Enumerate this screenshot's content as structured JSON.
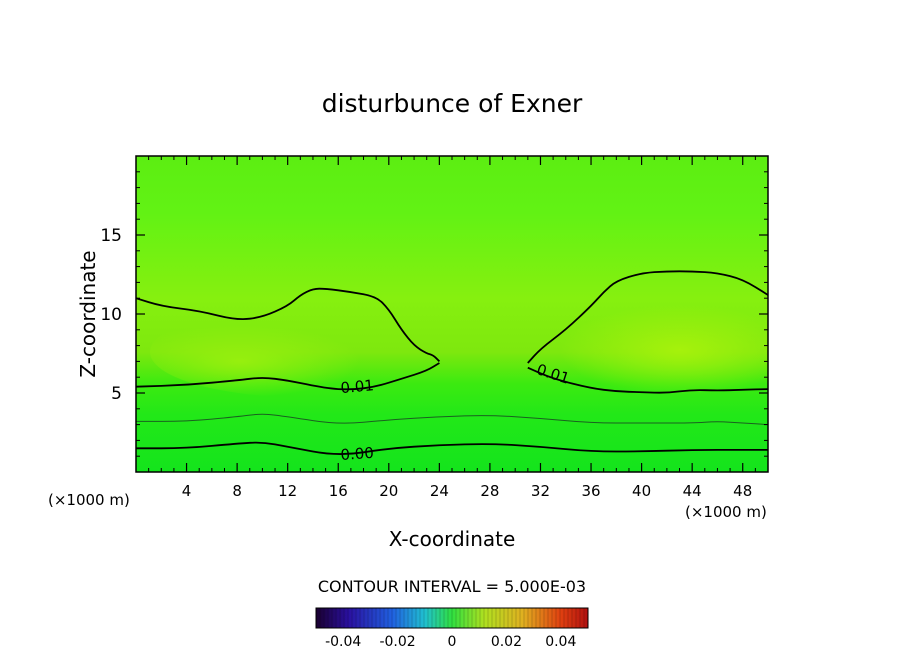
{
  "chart_data": {
    "type": "heatmap",
    "title": "disturbunce of Exner",
    "xlabel": "X-coordinate",
    "ylabel": "Z-coordinate",
    "x_unit": "(×1000 m)",
    "z_unit": "(×1000 m)",
    "xlim": [
      0,
      50
    ],
    "ylim": [
      0,
      20
    ],
    "x_ticks": [
      4,
      8,
      12,
      16,
      20,
      24,
      28,
      32,
      36,
      40,
      44,
      48
    ],
    "y_ticks": [
      5,
      10,
      15
    ],
    "contour_interval_text": "CONTOUR INTERVAL = 5.000E-03",
    "contour_labels": [
      "0.01",
      "0.01",
      "0.00"
    ],
    "colorbar": {
      "range": [
        -0.05,
        0.05
      ],
      "ticks": [
        "-0.04",
        "-0.02",
        "0",
        "0.02",
        "0.04"
      ]
    },
    "contours": [
      {
        "level": 0.01,
        "x": [
          0,
          4,
          8,
          10,
          12,
          15,
          17,
          19,
          21,
          23,
          24
        ],
        "z": [
          5.4,
          5.5,
          5.8,
          6.0,
          5.8,
          5.3,
          5.2,
          5.4,
          5.9,
          6.4,
          6.9
        ]
      },
      {
        "level": 0.01,
        "x": [
          0,
          2,
          5,
          8,
          10,
          12,
          13,
          14,
          15,
          17,
          19,
          20,
          21,
          22,
          23,
          23.5,
          24
        ],
        "z": [
          11.0,
          10.5,
          10.2,
          9.6,
          9.8,
          10.5,
          11.2,
          11.6,
          11.6,
          11.4,
          11.1,
          10.3,
          9.0,
          8.0,
          7.5,
          7.4,
          7.0
        ]
      },
      {
        "level": 0.01,
        "x": [
          31,
          32,
          34,
          36,
          37,
          38,
          40,
          42,
          44,
          46,
          48,
          50
        ],
        "z": [
          6.9,
          7.8,
          9.0,
          10.5,
          11.4,
          12.1,
          12.6,
          12.7,
          12.7,
          12.6,
          12.2,
          11.2
        ]
      },
      {
        "level": 0.01,
        "x": [
          31,
          33,
          36,
          38,
          40,
          42,
          44,
          46,
          48,
          50
        ],
        "z": [
          6.6,
          5.9,
          5.3,
          5.1,
          5.05,
          5.0,
          5.2,
          5.15,
          5.2,
          5.25
        ]
      },
      {
        "level": 0.005,
        "x": [
          0,
          4,
          8,
          10,
          12,
          16,
          20,
          24,
          28,
          32,
          36,
          40,
          44,
          46,
          48,
          50
        ],
        "z": [
          3.2,
          3.2,
          3.5,
          3.7,
          3.5,
          3.0,
          3.3,
          3.5,
          3.6,
          3.4,
          3.1,
          3.1,
          3.1,
          3.2,
          3.1,
          3.0
        ]
      },
      {
        "level": 0.0,
        "x": [
          0,
          4,
          8,
          10,
          12,
          16,
          20,
          24,
          28,
          32,
          36,
          40,
          44,
          48,
          50
        ],
        "z": [
          1.5,
          1.5,
          1.8,
          1.9,
          1.6,
          1.0,
          1.5,
          1.7,
          1.8,
          1.6,
          1.3,
          1.3,
          1.4,
          1.4,
          1.4
        ]
      }
    ],
    "grid": false
  }
}
